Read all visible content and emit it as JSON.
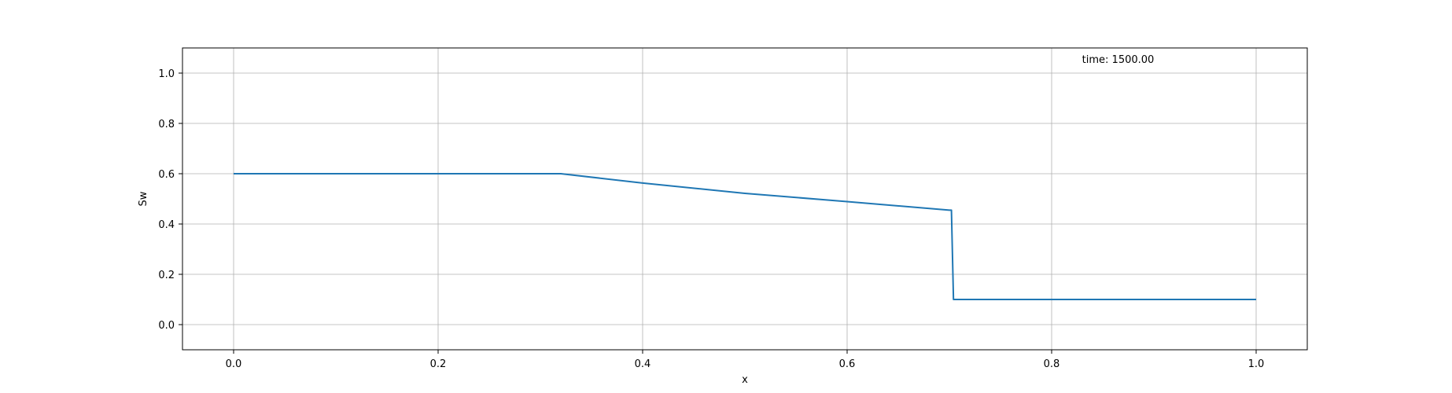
{
  "chart_data": {
    "type": "line",
    "title": "",
    "xlabel": "x",
    "ylabel": "Sw",
    "xlim": [
      -0.05,
      1.05
    ],
    "ylim": [
      -0.1,
      1.1
    ],
    "grid": true,
    "xticks": [
      0.0,
      0.2,
      0.4,
      0.6,
      0.8,
      1.0
    ],
    "xtick_labels": [
      "0.0",
      "0.2",
      "0.4",
      "0.6",
      "0.8",
      "1.0"
    ],
    "yticks": [
      0.0,
      0.2,
      0.4,
      0.6,
      0.8,
      1.0
    ],
    "ytick_labels": [
      "0.0",
      "0.2",
      "0.4",
      "0.6",
      "0.8",
      "1.0"
    ],
    "annotation": "time: 1500.00",
    "annotation_position": "top-right",
    "series": [
      {
        "name": "Sw",
        "color": "#1f77b4",
        "x": [
          0.0,
          0.32,
          0.4,
          0.5,
          0.6,
          0.7,
          0.702,
          0.704,
          0.8,
          0.9,
          1.0
        ],
        "y": [
          0.6,
          0.6,
          0.563,
          0.522,
          0.489,
          0.455,
          0.455,
          0.1,
          0.1,
          0.1,
          0.1
        ]
      }
    ]
  }
}
